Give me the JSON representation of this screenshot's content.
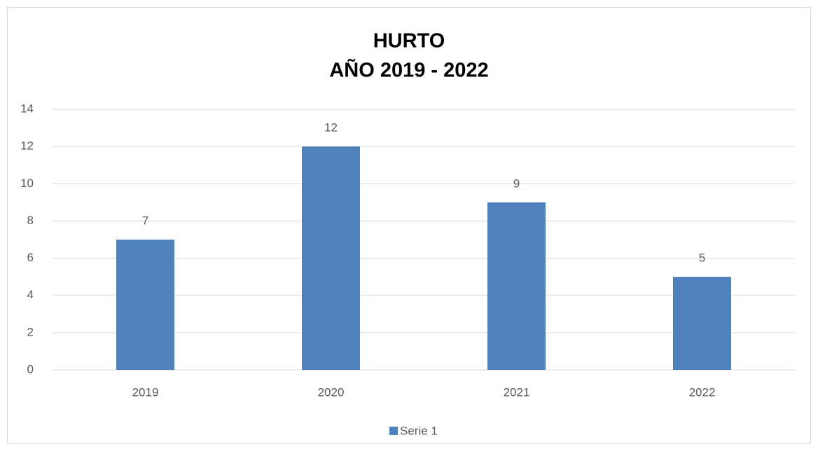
{
  "chart_data": {
    "type": "bar",
    "title": [
      "HURTO",
      "AÑO 2019 - 2022"
    ],
    "categories": [
      "2019",
      "2020",
      "2021",
      "2022"
    ],
    "series": [
      {
        "name": "Serie 1",
        "color": "#4f81bd",
        "values": [
          7,
          12,
          9,
          5
        ]
      }
    ],
    "ylim": [
      0,
      14
    ],
    "yticks": [
      0,
      2,
      4,
      6,
      8,
      10,
      12,
      14
    ],
    "grid": true,
    "legend": "bottom"
  }
}
